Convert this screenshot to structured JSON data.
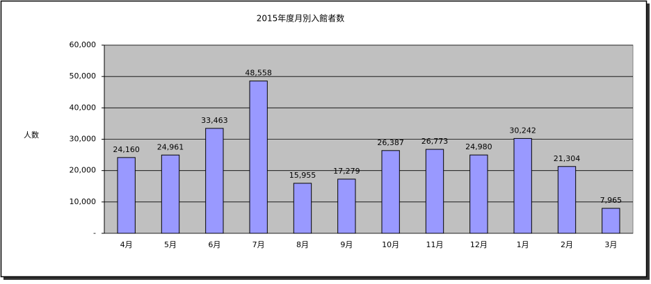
{
  "chart_data": {
    "type": "bar",
    "title": "2015年度月別入館者数",
    "y_label": "人数",
    "categories": [
      "4月",
      "5月",
      "6月",
      "7月",
      "8月",
      "9月",
      "10月",
      "11月",
      "12月",
      "1月",
      "2月",
      "3月"
    ],
    "values": [
      24160,
      24961,
      33463,
      48558,
      15955,
      17279,
      26387,
      26773,
      24980,
      30242,
      21304,
      7965
    ],
    "value_labels": [
      "24,160",
      "24,961",
      "33,463",
      "48,558",
      "15,955",
      "17,279",
      "26,387",
      "26,773",
      "24,980",
      "30,242",
      "21,304",
      "7,965"
    ],
    "color": "#9999ff",
    "ylim": [
      0,
      60000
    ],
    "yticks": [
      {
        "value": 0,
        "label": "-"
      },
      {
        "value": 10000,
        "label": "10,000"
      },
      {
        "value": 20000,
        "label": "20,000"
      },
      {
        "value": 30000,
        "label": "30,000"
      },
      {
        "value": 40000,
        "label": "40,000"
      },
      {
        "value": 50000,
        "label": "50,000"
      },
      {
        "value": 60000,
        "label": "60,000"
      }
    ],
    "grid": true
  }
}
